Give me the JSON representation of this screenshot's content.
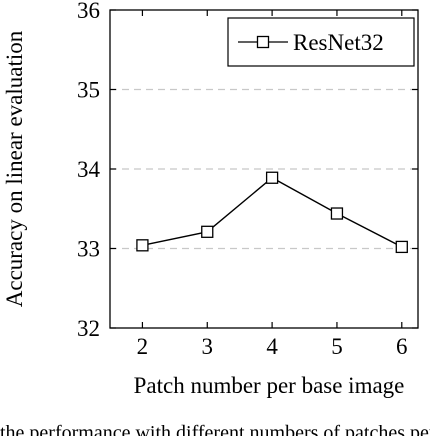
{
  "chart_data": {
    "type": "line",
    "title": "",
    "xlabel": "Patch number per base image",
    "ylabel": "Accuracy on linear evaluation",
    "x": [
      2,
      3,
      4,
      5,
      6
    ],
    "xticks": [
      "2",
      "3",
      "4",
      "5",
      "6"
    ],
    "yticks": [
      "32",
      "33",
      "34",
      "35",
      "36"
    ],
    "xlim": [
      1.5,
      6.25
    ],
    "ylim": [
      32,
      36
    ],
    "grid": "horizontal dashed",
    "legend_position": "top-right",
    "series": [
      {
        "name": "ResNet32",
        "marker": "square",
        "color": "#000000",
        "values": [
          33.04,
          33.21,
          33.89,
          33.44,
          33.02
        ]
      }
    ]
  },
  "caption_fragment": "the performance with different numbers of patches per base image"
}
